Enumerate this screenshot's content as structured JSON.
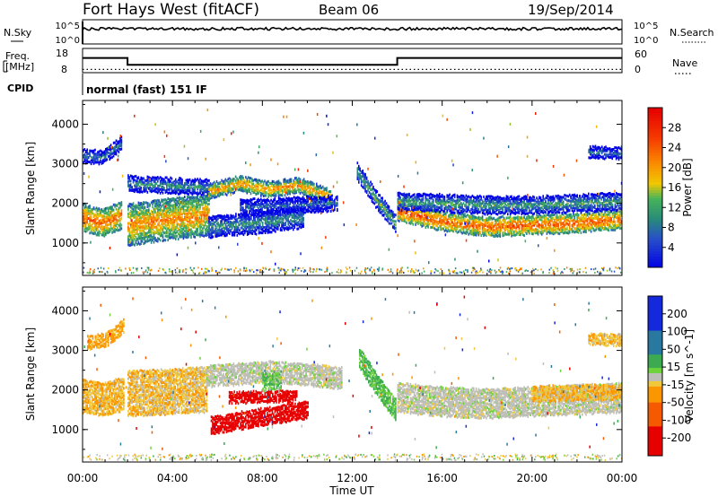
{
  "header": {
    "station": "Fort Hays West (fitACF)",
    "beam": "Beam 06",
    "date": "19/Sep/2014"
  },
  "noise_panel": {
    "left_label": "N.Sky",
    "right_label": "N.Search",
    "ticks": [
      "10^5",
      "10^0"
    ],
    "sky_level": 0.15
  },
  "freq_panel": {
    "left_label_1": "Freq.",
    "left_label_2": "[MHz]",
    "left_ticks": [
      "18",
      "8"
    ],
    "right_label": "Nave",
    "right_ticks": [
      "60",
      "0"
    ],
    "cpid_label": "CPID",
    "cpid_text": "normal (fast) 151 IF",
    "freq_steps": [
      {
        "start_h": 0.0,
        "end_h": 2.0,
        "freq_mhz": 14.5
      },
      {
        "start_h": 2.0,
        "end_h": 14.0,
        "freq_mhz": 10.5
      },
      {
        "start_h": 14.0,
        "end_h": 24.0,
        "freq_mhz": 14.5
      }
    ],
    "nave": 8
  },
  "chart_data": [
    {
      "type": "heatmap",
      "name_shown": "Power",
      "ylabel": "Slant Range [km]",
      "yticks": [
        "4000",
        "3000",
        "2000",
        "1000"
      ],
      "ylim": [
        180,
        4600
      ],
      "colorbar": {
        "label": "Power [dB]",
        "ticks": [
          "28",
          "24",
          "20",
          "16",
          "12",
          "8",
          "4"
        ],
        "range": [
          0,
          32
        ]
      },
      "bands": [
        {
          "x_start": 0.0,
          "x_end": 1.7,
          "center_km": [
            1650,
            1500,
            1700
          ],
          "thickness_km": 650,
          "power_db": 24
        },
        {
          "x_start": 0.0,
          "x_end": 1.7,
          "center_km": [
            3200,
            3150,
            3500
          ],
          "thickness_km": 300,
          "power_db": 10
        },
        {
          "x_start": 2.0,
          "x_end": 5.6,
          "center_km": [
            1450,
            1600,
            1700
          ],
          "thickness_km": 1000,
          "power_db": 22
        },
        {
          "x_start": 2.0,
          "x_end": 5.6,
          "center_km": [
            2500,
            2450,
            2400
          ],
          "thickness_km": 350,
          "power_db": 12
        },
        {
          "x_start": 5.6,
          "x_end": 11.0,
          "center_km": [
            2300,
            2500,
            2350,
            2450,
            2150
          ],
          "thickness_km": 350,
          "power_db": 22
        },
        {
          "x_start": 5.6,
          "x_end": 9.8,
          "center_km": [
            1400,
            1500,
            1650
          ],
          "thickness_km": 500,
          "power_db": 12
        },
        {
          "x_start": 7.0,
          "x_end": 11.3,
          "center_km": [
            1900,
            1950,
            2000
          ],
          "thickness_km": 350,
          "power_db": 8
        },
        {
          "x_start": 12.2,
          "x_end": 13.9,
          "center_km": [
            2800,
            2100,
            1500
          ],
          "thickness_km": 400,
          "power_db": 14
        },
        {
          "x_start": 14.0,
          "x_end": 24.0,
          "center_km": [
            1800,
            1550,
            1400,
            1450,
            1500,
            1600
          ],
          "thickness_km": 450,
          "power_db": 25
        },
        {
          "x_start": 14.0,
          "x_end": 24.0,
          "center_km": [
            2050,
            2000,
            1950,
            1950,
            2000,
            2050
          ],
          "thickness_km": 400,
          "power_db": 13
        },
        {
          "x_start": 22.5,
          "x_end": 24.0,
          "center_km": [
            3300,
            3250
          ],
          "thickness_km": 250,
          "power_db": 10
        }
      ]
    },
    {
      "type": "heatmap",
      "name_shown": "Velocity",
      "ylabel": "Slant Range [km]",
      "yticks": [
        "4000",
        "3000",
        "2000",
        "1000"
      ],
      "ylim": [
        180,
        4600
      ],
      "xlabel": "Time UT",
      "xticks": [
        "00:00",
        "04:00",
        "08:00",
        "12:00",
        "16:00",
        "20:00",
        "00:00"
      ],
      "xlim": [
        0,
        24
      ],
      "colorbar": {
        "label": "Velocity [m s^-1]",
        "ticks": [
          "200",
          "100",
          "50",
          "15",
          "-15",
          "-50",
          "-100",
          "-200"
        ],
        "range": [
          -250,
          250
        ]
      },
      "bands": [
        {
          "x_start": 0.0,
          "x_end": 1.8,
          "center_km": [
            1850,
            1750,
            1900
          ],
          "thickness_km": 800,
          "velocity": -30
        },
        {
          "x_start": 0.2,
          "x_end": 1.8,
          "center_km": [
            3200,
            3250,
            3600
          ],
          "thickness_km": 300,
          "velocity": -40
        },
        {
          "x_start": 2.0,
          "x_end": 5.5,
          "center_km": [
            1900,
            1950,
            2000
          ],
          "thickness_km": 1100,
          "velocity": -25
        },
        {
          "x_start": 5.5,
          "x_end": 11.5,
          "center_km": [
            2350,
            2450,
            2300
          ],
          "thickness_km": 500,
          "velocity": 0
        },
        {
          "x_start": 5.7,
          "x_end": 10.0,
          "center_km": [
            1100,
            1300,
            1500
          ],
          "thickness_km": 400,
          "velocity": -180
        },
        {
          "x_start": 6.5,
          "x_end": 9.5,
          "center_km": [
            1800,
            1850
          ],
          "thickness_km": 250,
          "velocity": -200
        },
        {
          "x_start": 8.0,
          "x_end": 8.8,
          "center_km": [
            2200,
            2250
          ],
          "thickness_km": 400,
          "velocity": 30
        },
        {
          "x_start": 12.3,
          "x_end": 13.9,
          "center_km": [
            2800,
            2100,
            1500
          ],
          "thickness_km": 500,
          "velocity": 35
        },
        {
          "x_start": 14.0,
          "x_end": 24.0,
          "center_km": [
            1800,
            1700,
            1650,
            1700,
            1750,
            1800
          ],
          "thickness_km": 700,
          "velocity": 0
        },
        {
          "x_start": 20.0,
          "x_end": 24.0,
          "center_km": [
            1900,
            1950
          ],
          "thickness_km": 350,
          "velocity": -30
        },
        {
          "x_start": 22.5,
          "x_end": 24.0,
          "center_km": [
            3300,
            3250
          ],
          "thickness_km": 250,
          "velocity": -30
        }
      ]
    }
  ]
}
